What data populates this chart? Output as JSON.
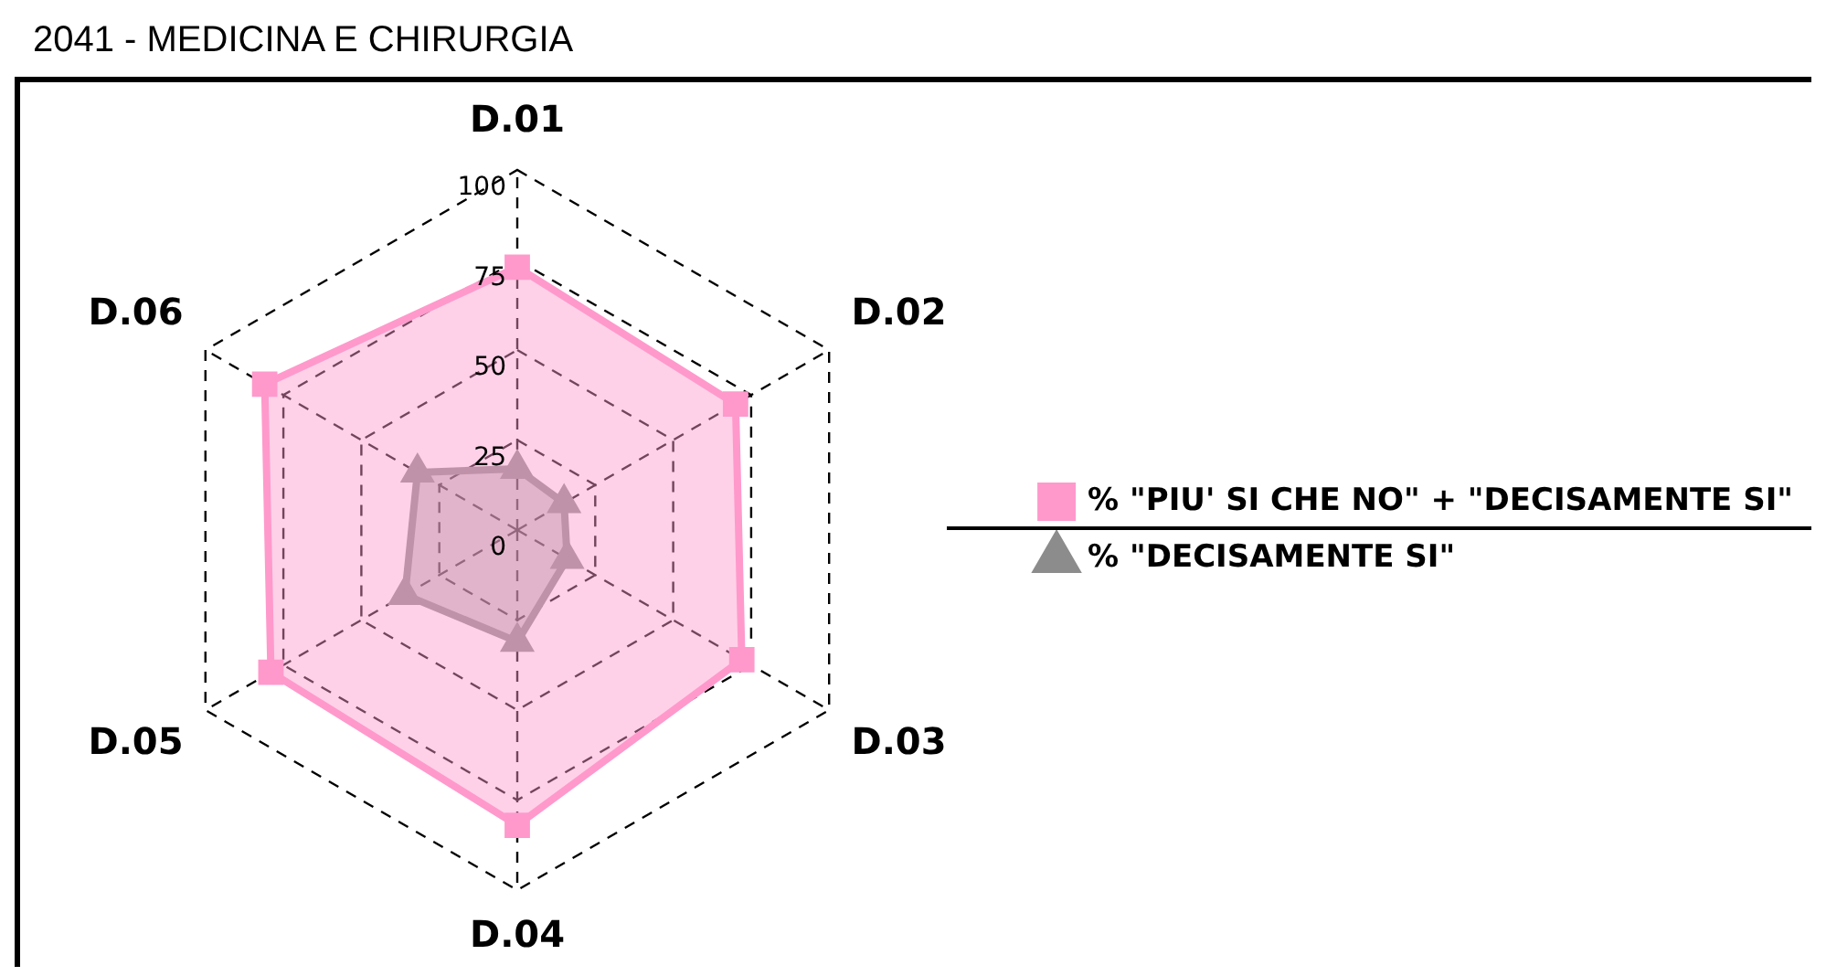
{
  "chart_data": {
    "type": "radar",
    "title": "2041 - MEDICINA E CHIRURGIA",
    "categories": [
      "D.01",
      "D.02",
      "D.03",
      "D.04",
      "D.05",
      "D.06"
    ],
    "series": [
      {
        "name": "% \"PIU' SI CHE NO\" + \"DECISAMENTE SI\"",
        "color": "#ff99cc",
        "marker": "square",
        "values": [
          73,
          70,
          72,
          82,
          79,
          81
        ]
      },
      {
        "name": "% \"DECISAMENTE SI\"",
        "color": "#8c8c8c",
        "marker": "triangle",
        "values": [
          17,
          15,
          16,
          31,
          36,
          32
        ]
      }
    ],
    "ylim": [
      0,
      100
    ],
    "yticks": [
      0,
      25,
      50,
      75,
      100
    ],
    "grid": true,
    "line_style": "dashed",
    "legend": "right"
  }
}
